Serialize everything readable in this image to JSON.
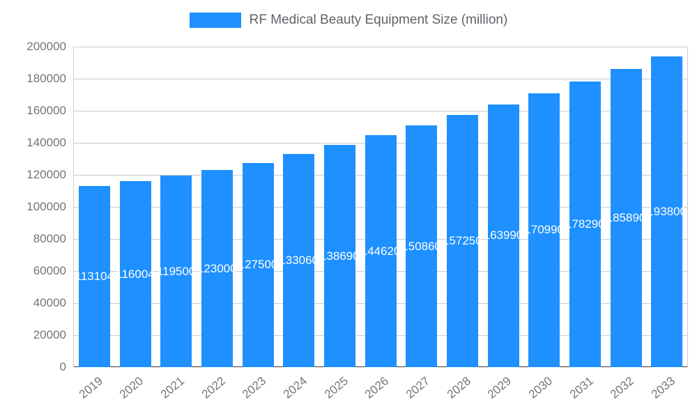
{
  "legend": {
    "label": "RF Medical Beauty Equipment Size (million)"
  },
  "chart_data": {
    "type": "bar",
    "title": "RF Medical Beauty Equipment Size (million)",
    "categories": [
      "2019",
      "2020",
      "2021",
      "2022",
      "2023",
      "2024",
      "2025",
      "2026",
      "2027",
      "2028",
      "2029",
      "2030",
      "2031",
      "2032",
      "2033"
    ],
    "values": [
      113104,
      116004,
      119500,
      123000,
      127500,
      133060,
      138690,
      144620,
      150860,
      157250,
      163990,
      170990,
      178290,
      185890,
      193800
    ],
    "xlabel": "",
    "ylabel": "",
    "ylim": [
      0,
      200000
    ],
    "yticks": [
      0,
      20000,
      40000,
      60000,
      80000,
      100000,
      120000,
      140000,
      160000,
      180000,
      200000
    ],
    "grid": true,
    "legend_position": "top",
    "bar_labels_inside": true,
    "colors": {
      "bar": "#1e90ff",
      "bar_label": "#ffffff",
      "axis_text": "#757575",
      "title_text": "#5f6368",
      "gridline": "#cccccc",
      "baseline": "#333333",
      "background": "#ffffff"
    }
  }
}
